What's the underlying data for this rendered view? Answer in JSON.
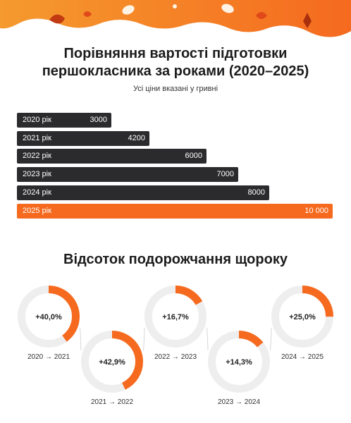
{
  "header": {
    "title_line1": "Порівняння вартості підготовки",
    "title_line2": "першокласника за роками (2020–2025)",
    "subtitle": "Усі ціни вказані у гривні"
  },
  "section2": {
    "title": "Відсоток подорожчання щороку"
  },
  "colors": {
    "accent": "#f56a1f",
    "dark_bar": "#2b2b2d",
    "ring_bg": "#eeeeee"
  },
  "chart_data": [
    {
      "type": "bar",
      "orientation": "horizontal",
      "categories": [
        "2020 рік",
        "2021 рік",
        "2022 рік",
        "2023 рік",
        "2024 рік",
        "2025 рік"
      ],
      "values": [
        3000,
        4200,
        6000,
        7000,
        8000,
        10000
      ],
      "value_labels": [
        "3000",
        "4200",
        "6000",
        "7000",
        "8000",
        "10 000"
      ],
      "highlight_index": 5,
      "xlim": [
        0,
        10000
      ]
    },
    {
      "type": "pie",
      "variant": "donut-progress",
      "items": [
        {
          "label": "+40,0%",
          "value": 40.0,
          "period": "2020 → 2021"
        },
        {
          "label": "+42,9%",
          "value": 42.9,
          "period": "2021 → 2022"
        },
        {
          "label": "+16,7%",
          "value": 16.7,
          "period": "2022 → 2023"
        },
        {
          "label": "+14,3%",
          "value": 14.3,
          "period": "2023 → 2024"
        },
        {
          "label": "+25,0%",
          "value": 25.0,
          "period": "2024 → 2025"
        }
      ]
    }
  ]
}
